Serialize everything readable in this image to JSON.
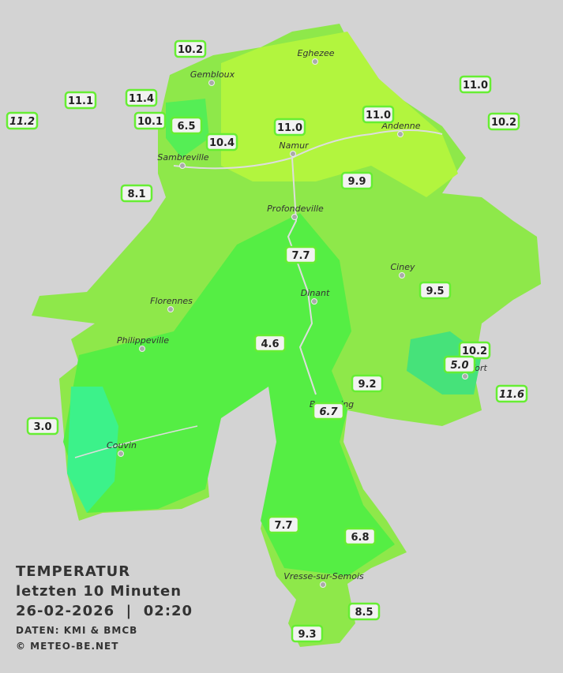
{
  "title": {
    "heading": "TEMPERATUR",
    "period": "letzten 10 Minuten",
    "datetime": "26-02-2026  |  02:20",
    "source": "DATEN: KMI & BMCB",
    "copyright": "© METEO-BE.NET"
  },
  "cities": [
    "Eghezee",
    "Gembloux",
    "Andenne",
    "Namur",
    "Sambreville",
    "Profondeville",
    "Ciney",
    "Dinant",
    "Florennes",
    "Philippeville",
    "Rochefort",
    "Beauraing",
    "Couvin",
    "Vresse-sur-Semois"
  ],
  "stations": [
    {
      "label": "10.2",
      "estimated": false
    },
    {
      "label": "11.1",
      "estimated": false
    },
    {
      "label": "11.4",
      "estimated": false
    },
    {
      "label": "11.2",
      "estimated": true
    },
    {
      "label": "10.1",
      "estimated": false
    },
    {
      "label": "6.5",
      "estimated": false
    },
    {
      "label": "10.4",
      "estimated": false
    },
    {
      "label": "11.0",
      "estimated": false
    },
    {
      "label": "11.0",
      "estimated": false
    },
    {
      "label": "11.0",
      "estimated": false
    },
    {
      "label": "10.2",
      "estimated": false
    },
    {
      "label": "9.9",
      "estimated": false
    },
    {
      "label": "8.1",
      "estimated": false
    },
    {
      "label": "7.7",
      "estimated": false
    },
    {
      "label": "9.5",
      "estimated": false
    },
    {
      "label": "4.6",
      "estimated": false
    },
    {
      "label": "10.2",
      "estimated": false
    },
    {
      "label": "5.0",
      "estimated": true
    },
    {
      "label": "9.2",
      "estimated": false
    },
    {
      "label": "6.7",
      "estimated": true
    },
    {
      "label": "11.6",
      "estimated": true
    },
    {
      "label": "3.0",
      "estimated": false
    },
    {
      "label": "7.7",
      "estimated": false
    },
    {
      "label": "6.8",
      "estimated": false
    },
    {
      "label": "8.5",
      "estimated": false
    },
    {
      "label": "9.3",
      "estimated": false
    }
  ]
}
